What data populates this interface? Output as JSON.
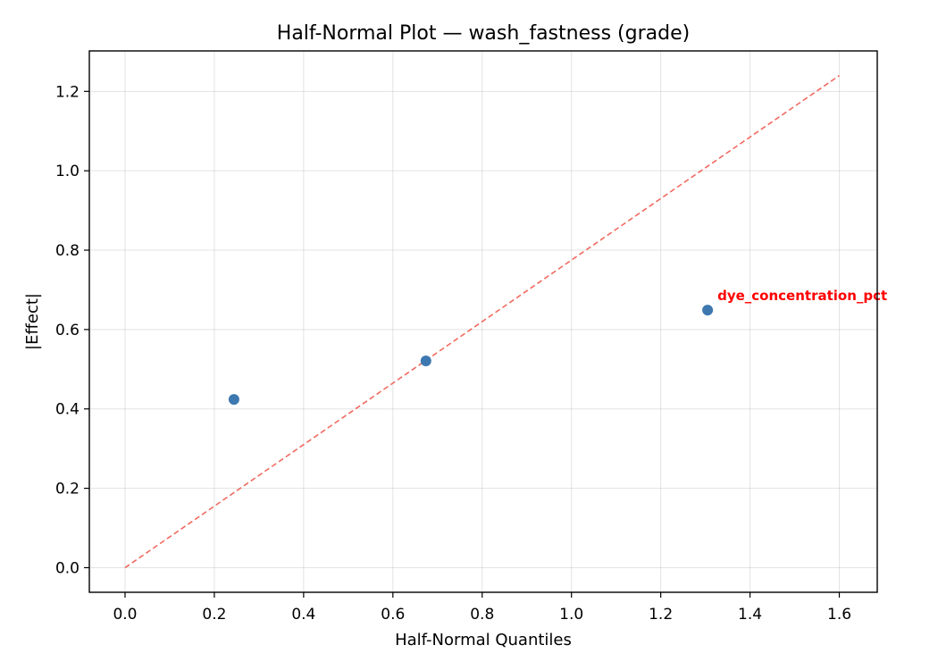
{
  "chart_data": {
    "type": "scatter",
    "title": "Half-Normal Plot — wash_fastness (grade)",
    "xlabel": "Half-Normal Quantiles",
    "ylabel": "|Effect|",
    "xlim": [
      -0.08,
      1.685
    ],
    "ylim": [
      -0.062,
      1.302
    ],
    "xticks": [
      0.0,
      0.2,
      0.4,
      0.6,
      0.8,
      1.0,
      1.2,
      1.4,
      1.6
    ],
    "xtick_labels": [
      "0.0",
      "0.2",
      "0.4",
      "0.6",
      "0.8",
      "1.0",
      "1.2",
      "1.4",
      "1.6"
    ],
    "yticks": [
      0.0,
      0.2,
      0.4,
      0.6,
      0.8,
      1.0,
      1.2
    ],
    "ytick_labels": [
      "0.0",
      "0.2",
      "0.4",
      "0.6",
      "0.8",
      "1.0",
      "1.2"
    ],
    "grid": true,
    "series": [
      {
        "points": [
          {
            "x": 0.244,
            "y": 0.424
          },
          {
            "x": 0.674,
            "y": 0.521
          },
          {
            "x": 1.305,
            "y": 0.649
          }
        ],
        "color": "#3d78b0"
      }
    ],
    "reference_line": {
      "x": [
        0.0,
        1.6
      ],
      "y": [
        0.0,
        1.24
      ],
      "style": "dashed",
      "color": "#f06a60"
    },
    "annotations": [
      {
        "text": "dye_concentration_pct",
        "x": 1.305,
        "y": 0.649,
        "color": "#ff0000"
      }
    ]
  }
}
